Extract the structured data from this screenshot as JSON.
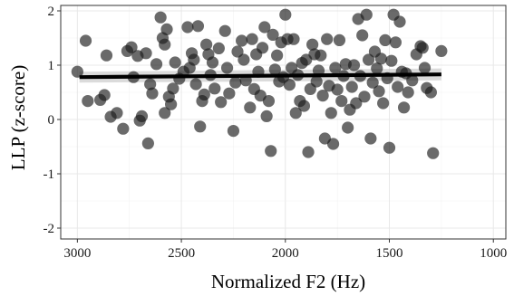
{
  "chart_data": {
    "type": "scatter",
    "title": "",
    "xlabel": "Normalized F2 (Hz)",
    "ylabel": "LLP (z-score)",
    "x_reversed": true,
    "xlim": [
      3080,
      940
    ],
    "ylim": [
      -2.2,
      2.1
    ],
    "x_ticks": [
      3000,
      2500,
      2000,
      1500,
      1000
    ],
    "x_tick_labels": [
      "3000",
      "2500",
      "2000",
      "1500",
      "1000"
    ],
    "y_ticks": [
      -2,
      -1,
      0,
      1,
      2
    ],
    "y_tick_labels": [
      "-2",
      "-1",
      "0",
      "1",
      "2"
    ],
    "grid": true,
    "legend": "none",
    "point_color": "#1a1a1a",
    "point_opacity": 0.65,
    "trend": {
      "method": "linear",
      "x": [
        2990,
        1250
      ],
      "y": [
        0.78,
        0.83
      ],
      "band_lower": [
        0.68,
        0.72
      ],
      "band_upper": [
        0.88,
        0.94
      ],
      "line_color": "#000000",
      "band_color": "#bdbdbd"
    },
    "points": [
      {
        "x": 3000,
        "y": 0.88
      },
      {
        "x": 2960,
        "y": 1.45
      },
      {
        "x": 2950,
        "y": 0.34
      },
      {
        "x": 2890,
        "y": 0.36
      },
      {
        "x": 2870,
        "y": 0.45
      },
      {
        "x": 2860,
        "y": 1.18
      },
      {
        "x": 2840,
        "y": 0.05
      },
      {
        "x": 2810,
        "y": 0.12
      },
      {
        "x": 2780,
        "y": -0.17
      },
      {
        "x": 2760,
        "y": 1.26
      },
      {
        "x": 2740,
        "y": 1.33
      },
      {
        "x": 2730,
        "y": 0.78
      },
      {
        "x": 2710,
        "y": 1.17
      },
      {
        "x": 2700,
        "y": -0.02
      },
      {
        "x": 2690,
        "y": 0.06
      },
      {
        "x": 2670,
        "y": 1.22
      },
      {
        "x": 2660,
        "y": -0.44
      },
      {
        "x": 2650,
        "y": 0.65
      },
      {
        "x": 2640,
        "y": 0.48
      },
      {
        "x": 2620,
        "y": 1.02
      },
      {
        "x": 2600,
        "y": 1.88
      },
      {
        "x": 2590,
        "y": 1.5
      },
      {
        "x": 2580,
        "y": 1.38
      },
      {
        "x": 2580,
        "y": 0.12
      },
      {
        "x": 2570,
        "y": 1.66
      },
      {
        "x": 2560,
        "y": 0.42
      },
      {
        "x": 2550,
        "y": 0.28
      },
      {
        "x": 2540,
        "y": 0.57
      },
      {
        "x": 2530,
        "y": 1.05
      },
      {
        "x": 2510,
        "y": 0.75
      },
      {
        "x": 2490,
        "y": 0.88
      },
      {
        "x": 2470,
        "y": 1.7
      },
      {
        "x": 2460,
        "y": 0.95
      },
      {
        "x": 2450,
        "y": 1.22
      },
      {
        "x": 2440,
        "y": 1.1
      },
      {
        "x": 2430,
        "y": 0.65
      },
      {
        "x": 2420,
        "y": 1.72
      },
      {
        "x": 2410,
        "y": -0.13
      },
      {
        "x": 2400,
        "y": 0.34
      },
      {
        "x": 2390,
        "y": 0.46
      },
      {
        "x": 2380,
        "y": 1.38
      },
      {
        "x": 2370,
        "y": 1.2
      },
      {
        "x": 2360,
        "y": 0.82
      },
      {
        "x": 2350,
        "y": 1.05
      },
      {
        "x": 2340,
        "y": 0.57
      },
      {
        "x": 2320,
        "y": 1.31
      },
      {
        "x": 2310,
        "y": 0.32
      },
      {
        "x": 2290,
        "y": 1.63
      },
      {
        "x": 2280,
        "y": 0.95
      },
      {
        "x": 2270,
        "y": 0.48
      },
      {
        "x": 2250,
        "y": -0.21
      },
      {
        "x": 2240,
        "y": 0.68
      },
      {
        "x": 2230,
        "y": 1.25
      },
      {
        "x": 2210,
        "y": 1.45
      },
      {
        "x": 2200,
        "y": 1.1
      },
      {
        "x": 2190,
        "y": 0.72
      },
      {
        "x": 2170,
        "y": 0.22
      },
      {
        "x": 2160,
        "y": 1.48
      },
      {
        "x": 2150,
        "y": 0.56
      },
      {
        "x": 2140,
        "y": 1.2
      },
      {
        "x": 2130,
        "y": 0.88
      },
      {
        "x": 2120,
        "y": 0.44
      },
      {
        "x": 2110,
        "y": 1.32
      },
      {
        "x": 2100,
        "y": 1.7
      },
      {
        "x": 2090,
        "y": 0.06
      },
      {
        "x": 2080,
        "y": 0.34
      },
      {
        "x": 2070,
        "y": -0.58
      },
      {
        "x": 2060,
        "y": 1.56
      },
      {
        "x": 2050,
        "y": 0.92
      },
      {
        "x": 2040,
        "y": 1.18
      },
      {
        "x": 2030,
        "y": 0.7
      },
      {
        "x": 2020,
        "y": 1.42
      },
      {
        "x": 2010,
        "y": 0.78
      },
      {
        "x": 2000,
        "y": 1.93
      },
      {
        "x": 1990,
        "y": 1.48
      },
      {
        "x": 1980,
        "y": 0.64
      },
      {
        "x": 1970,
        "y": 0.95
      },
      {
        "x": 1960,
        "y": 1.48
      },
      {
        "x": 1950,
        "y": 0.12
      },
      {
        "x": 1940,
        "y": 0.82
      },
      {
        "x": 1930,
        "y": 0.34
      },
      {
        "x": 1920,
        "y": 1.04
      },
      {
        "x": 1910,
        "y": 0.25
      },
      {
        "x": 1900,
        "y": 1.1
      },
      {
        "x": 1890,
        "y": -0.6
      },
      {
        "x": 1880,
        "y": 0.56
      },
      {
        "x": 1870,
        "y": 1.38
      },
      {
        "x": 1860,
        "y": 1.2
      },
      {
        "x": 1850,
        "y": 0.7
      },
      {
        "x": 1840,
        "y": 0.9
      },
      {
        "x": 1830,
        "y": 1.18
      },
      {
        "x": 1820,
        "y": 0.44
      },
      {
        "x": 1810,
        "y": -0.35
      },
      {
        "x": 1800,
        "y": 1.48
      },
      {
        "x": 1790,
        "y": 0.62
      },
      {
        "x": 1780,
        "y": 0.12
      },
      {
        "x": 1770,
        "y": -0.45
      },
      {
        "x": 1760,
        "y": 0.95
      },
      {
        "x": 1750,
        "y": 0.55
      },
      {
        "x": 1740,
        "y": 1.46
      },
      {
        "x": 1730,
        "y": 0.34
      },
      {
        "x": 1720,
        "y": 0.8
      },
      {
        "x": 1710,
        "y": 1.02
      },
      {
        "x": 1700,
        "y": -0.15
      },
      {
        "x": 1690,
        "y": 0.18
      },
      {
        "x": 1680,
        "y": 0.6
      },
      {
        "x": 1670,
        "y": 1.0
      },
      {
        "x": 1660,
        "y": 0.3
      },
      {
        "x": 1650,
        "y": 1.85
      },
      {
        "x": 1640,
        "y": 0.8
      },
      {
        "x": 1630,
        "y": 1.55
      },
      {
        "x": 1620,
        "y": 0.42
      },
      {
        "x": 1610,
        "y": 1.93
      },
      {
        "x": 1600,
        "y": 1.1
      },
      {
        "x": 1590,
        "y": -0.35
      },
      {
        "x": 1580,
        "y": 0.68
      },
      {
        "x": 1570,
        "y": 1.25
      },
      {
        "x": 1560,
        "y": 0.94
      },
      {
        "x": 1550,
        "y": 0.52
      },
      {
        "x": 1540,
        "y": 1.12
      },
      {
        "x": 1530,
        "y": 0.3
      },
      {
        "x": 1520,
        "y": 1.46
      },
      {
        "x": 1510,
        "y": 0.76
      },
      {
        "x": 1500,
        "y": -0.52
      },
      {
        "x": 1490,
        "y": 1.08
      },
      {
        "x": 1480,
        "y": 1.93
      },
      {
        "x": 1470,
        "y": 1.42
      },
      {
        "x": 1460,
        "y": 0.6
      },
      {
        "x": 1450,
        "y": 1.8
      },
      {
        "x": 1440,
        "y": 0.88
      },
      {
        "x": 1430,
        "y": 0.22
      },
      {
        "x": 1420,
        "y": 0.85
      },
      {
        "x": 1410,
        "y": 0.5
      },
      {
        "x": 1390,
        "y": 0.72
      },
      {
        "x": 1370,
        "y": 1.2
      },
      {
        "x": 1350,
        "y": 1.35
      },
      {
        "x": 1340,
        "y": 1.32
      },
      {
        "x": 1330,
        "y": 0.95
      },
      {
        "x": 1320,
        "y": 0.58
      },
      {
        "x": 1300,
        "y": 0.5
      },
      {
        "x": 1290,
        "y": -0.62
      },
      {
        "x": 1250,
        "y": 1.26
      }
    ]
  }
}
